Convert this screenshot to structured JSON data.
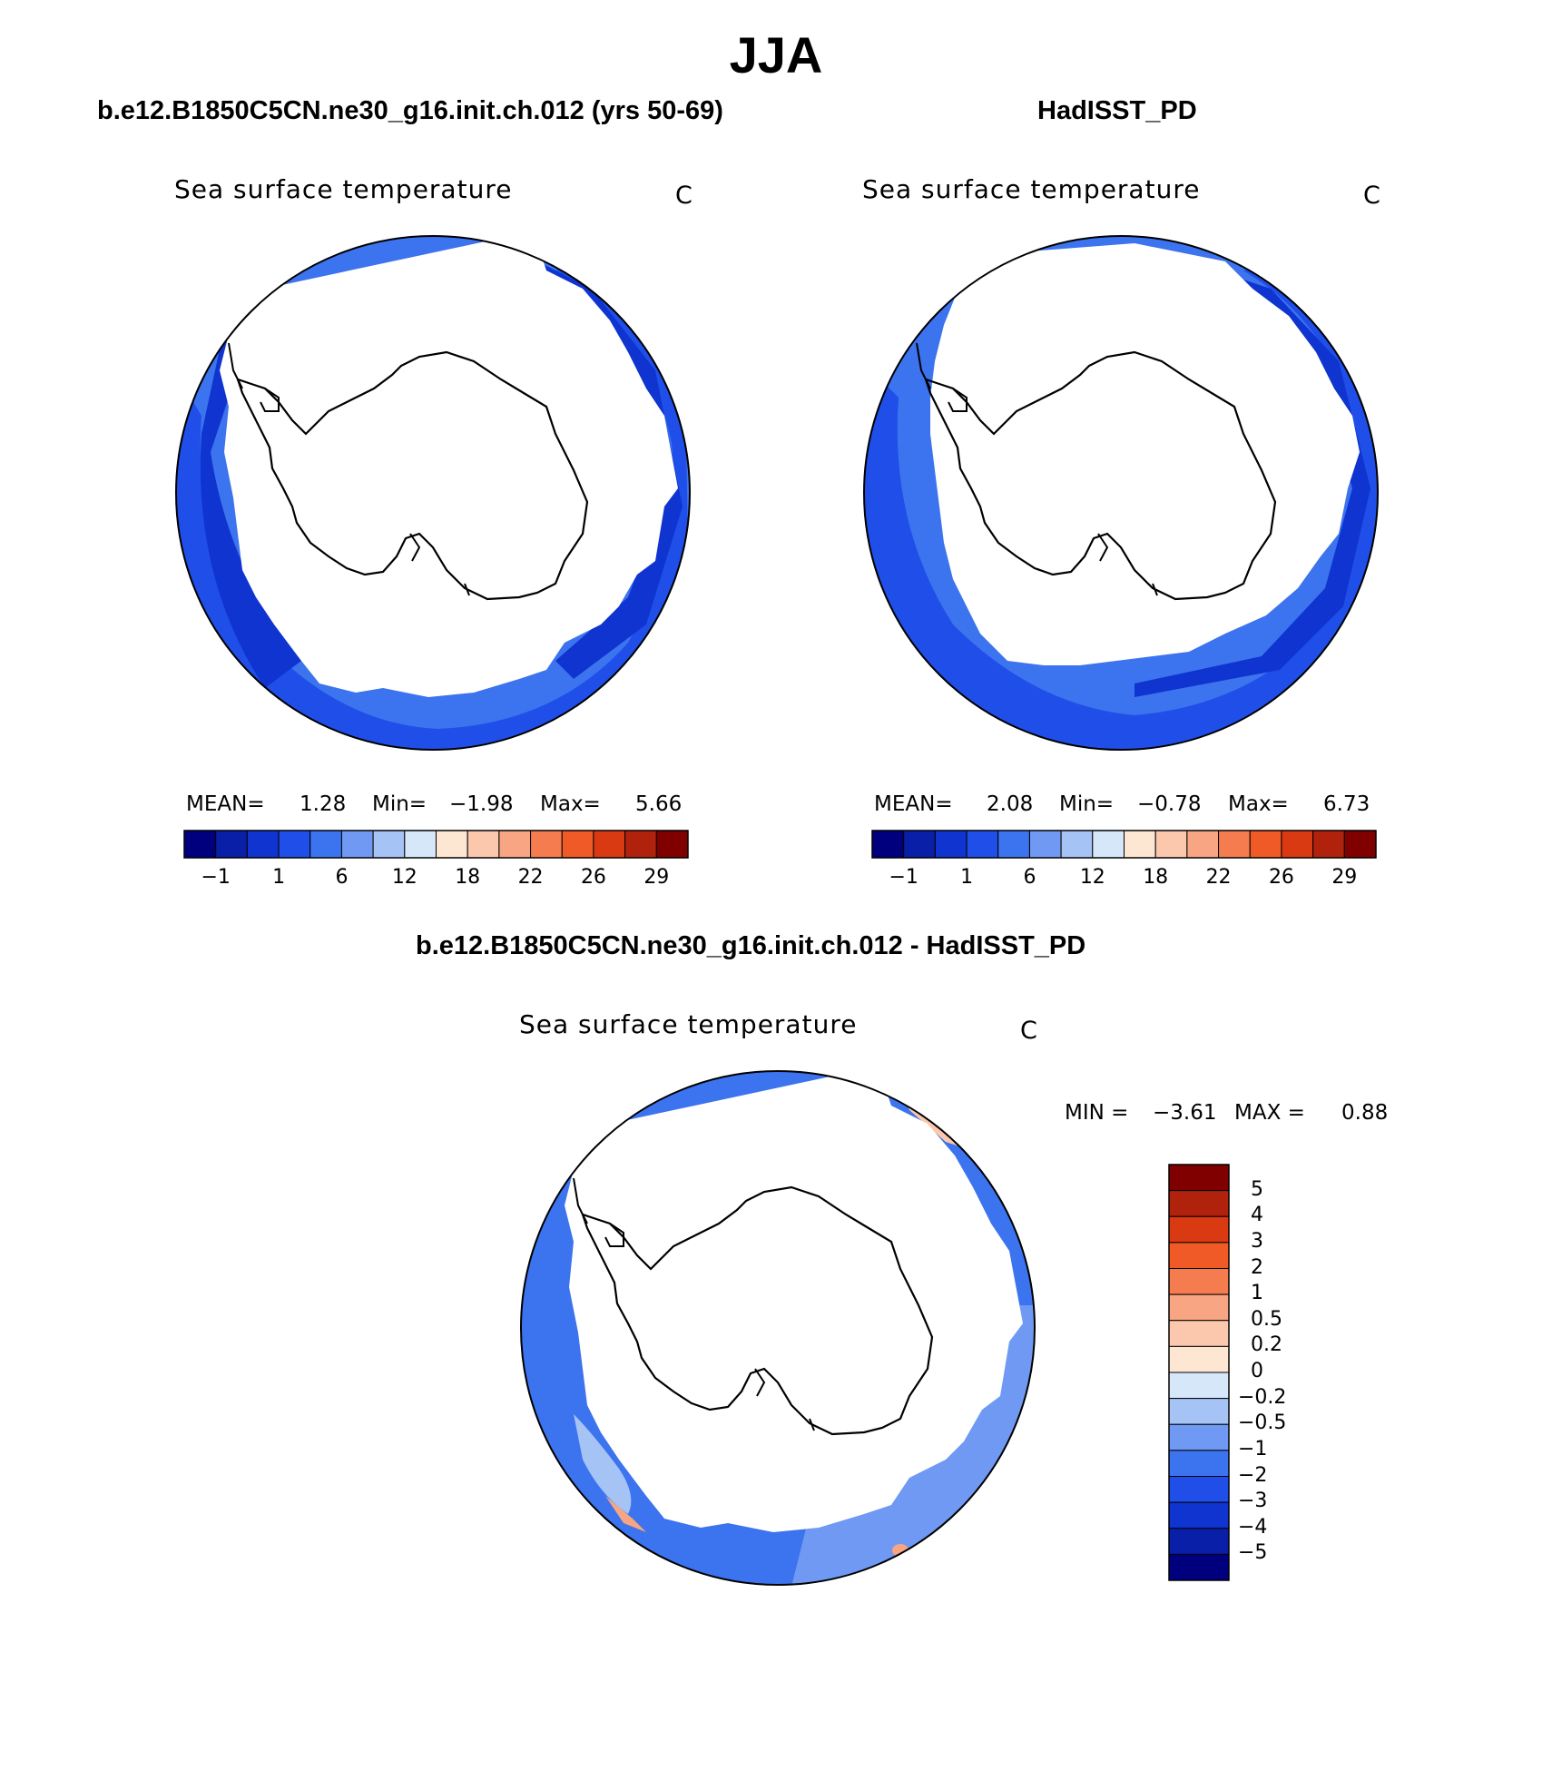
{
  "season": "JJA",
  "panels": [
    {
      "case": "b.e12.B1850C5CN.ne30_g16.init.ch.012 (yrs 50-69)",
      "variable": "Sea surface temperature",
      "units": "C",
      "stats": {
        "mean_label": "MEAN=",
        "mean": "1.28",
        "min_label": "Min=",
        "min": "−1.98",
        "max_label": "Max=",
        "max": "5.66"
      }
    },
    {
      "case": "HadISST_PD",
      "variable": "Sea surface temperature",
      "units": "C",
      "stats": {
        "mean_label": "MEAN=",
        "mean": "2.08",
        "min_label": "Min=",
        "min": "−0.78",
        "max_label": "Max=",
        "max": "6.73"
      }
    }
  ],
  "diff_panel": {
    "case": "b.e12.B1850C5CN.ne30_g16.init.ch.012 - HadISST_PD",
    "variable": "Sea surface temperature",
    "units": "C",
    "stats": {
      "min_label": "MIN =",
      "min": "−3.61",
      "max_label": "MAX =",
      "max": "0.88"
    }
  },
  "abs_colorbar": {
    "colors": [
      "#00007f",
      "#0a1fa8",
      "#0f34d0",
      "#1f4fe8",
      "#3c73ee",
      "#6f99f2",
      "#a6c3f6",
      "#d7e7fa",
      "#fde6d2",
      "#fbc7ad",
      "#f7a582",
      "#f47c4f",
      "#f05a26",
      "#da3a12",
      "#b0220c",
      "#800000"
    ],
    "tick_labels": [
      "−1",
      "1",
      "6",
      "12",
      "18",
      "22",
      "26",
      "29"
    ]
  },
  "diff_colorbar": {
    "colors": [
      "#800000",
      "#b0220c",
      "#da3a12",
      "#f05a26",
      "#f47c4f",
      "#f7a582",
      "#fbc7ad",
      "#fde6d2",
      "#d7e7fa",
      "#a6c3f6",
      "#6f99f2",
      "#3c73ee",
      "#1f4fe8",
      "#0f34d0",
      "#0a1fa8",
      "#00007f"
    ],
    "tick_labels": [
      "5",
      "4",
      "3",
      "2",
      "1",
      "0.5",
      "0.2",
      "0",
      "−0.2",
      "−0.5",
      "−1",
      "−2",
      "−3",
      "−4",
      "−5"
    ]
  },
  "map_colors": {
    "ocean_dark": "#0f34d0",
    "ocean_mid": "#1f4fe8",
    "ocean_light": "#3c73ee",
    "diff_base": "#3c73ee",
    "diff_light": "#6f99f2",
    "diff_pale": "#a6c3f6",
    "diff_warm": "#fbc7ad",
    "diff_warm2": "#f7a582"
  }
}
